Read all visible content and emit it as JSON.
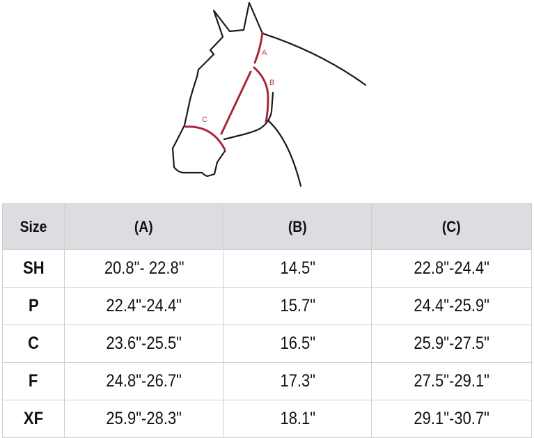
{
  "diagram": {
    "labels": {
      "a": "A",
      "b": "B",
      "c": "C"
    },
    "measure_color": "#a8283a"
  },
  "table": {
    "headers": [
      "Size",
      "(A)",
      "(B)",
      "(C)"
    ],
    "rows": [
      [
        "SH",
        "20.8\"- 22.8\"",
        "14.5\"",
        "22.8\"-24.4\""
      ],
      [
        "P",
        "22.4\"-24.4\"",
        "15.7\"",
        "24.4\"-25.9\""
      ],
      [
        "C",
        "23.6\"-25.5\"",
        "16.5\"",
        "25.9\"-27.5\""
      ],
      [
        "F",
        "24.8\"-26.7\"",
        "17.3\"",
        "27.5\"-29.1\""
      ],
      [
        "XF",
        "25.9\"-28.3\"",
        "18.1\"",
        "29.1\"-30.7\""
      ]
    ]
  }
}
